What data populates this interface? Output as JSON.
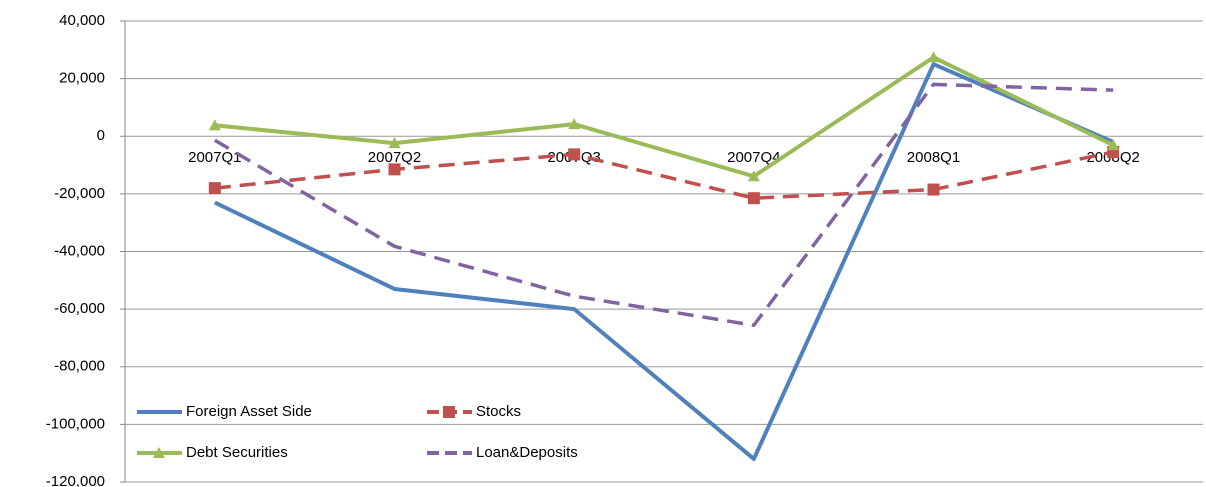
{
  "chart_data": {
    "type": "line",
    "categories": [
      "2007Q1",
      "2007Q2",
      "2007Q3",
      "2007Q4",
      "2008Q1",
      "2008Q2"
    ],
    "series": [
      {
        "name": "Foreign Asset Side",
        "color": "#4f81bd",
        "dash": false,
        "marker": "none",
        "values": [
          -23000,
          -53000,
          -60000,
          -112000,
          25000,
          -2000
        ]
      },
      {
        "name": "Stocks",
        "color": "#c0504d",
        "dash": true,
        "marker": "square",
        "values": [
          -18000,
          -11500,
          -6300,
          -21500,
          -18500,
          -5500
        ]
      },
      {
        "name": "Debt Securities",
        "color": "#9bbb59",
        "dash": false,
        "marker": "triangle",
        "values": [
          3800,
          -2400,
          4200,
          -13900,
          27400,
          -3100
        ]
      },
      {
        "name": "Loan&Deposits",
        "color": "#8064a2",
        "dash": true,
        "marker": "none",
        "values": [
          -1400,
          -38200,
          -55500,
          -65600,
          18000,
          16000
        ]
      }
    ],
    "ylim": [
      -120000,
      40000
    ],
    "yticks": [
      {
        "value": -120000,
        "label": "-120,000"
      },
      {
        "value": -100000,
        "label": "-100,000"
      },
      {
        "value": -80000,
        "label": "-80,000"
      },
      {
        "value": -60000,
        "label": "-60,000"
      },
      {
        "value": -40000,
        "label": "-40,000"
      },
      {
        "value": -20000,
        "label": "-20,000"
      },
      0,
      {
        "value": 20000,
        "label": "20,000"
      },
      {
        "value": 40000,
        "label": "40,000"
      }
    ],
    "grid": true,
    "legend": "lower left"
  }
}
